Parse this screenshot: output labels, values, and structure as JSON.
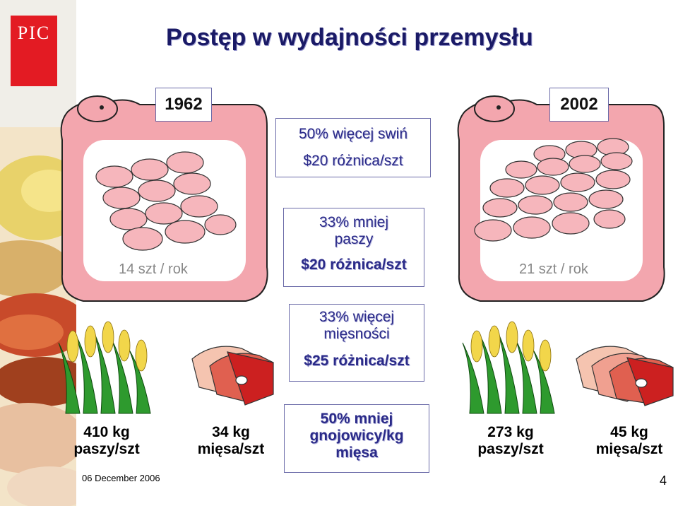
{
  "logo": "PIC",
  "title": "Postęp w wydajności przemysłu",
  "years": {
    "left": "1962",
    "right": "2002"
  },
  "pigs": {
    "left_count": "14 szt / rok",
    "right_count": "21 szt / rok"
  },
  "center": {
    "box1": {
      "line1": "50% więcej swiń",
      "line2": "$20 różnica/szt"
    },
    "box2": {
      "line1": "33% mniej",
      "line2": "paszy",
      "line3": "$20 różnica/szt"
    },
    "box3": {
      "line1": "33% więcej",
      "line2": "mięsności",
      "line3": "$25 różnica/szt"
    },
    "box4": {
      "line1": "50% mniej",
      "line2": "gnojowicy/kg",
      "line3": "mięsa"
    }
  },
  "bottom": {
    "feed_1962": {
      "line1": "410 kg",
      "line2": "paszy/szt"
    },
    "meat_1962": {
      "line1": "34 kg",
      "line2": "mięsa/szt"
    },
    "feed_2002": {
      "line1": "273 kg",
      "line2": "paszy/szt"
    },
    "meat_2002": {
      "line1": "45 kg",
      "line2": "mięsa/szt"
    }
  },
  "footer": {
    "date": "06 December 2006",
    "page": "4"
  },
  "colors": {
    "pig_frame": "#f0a0a8",
    "pig_body": "#f6b6bc",
    "corn": "#2e9a2e",
    "meat": "#cc2020",
    "logo": "#e31b23",
    "title": "#1a1a66"
  }
}
